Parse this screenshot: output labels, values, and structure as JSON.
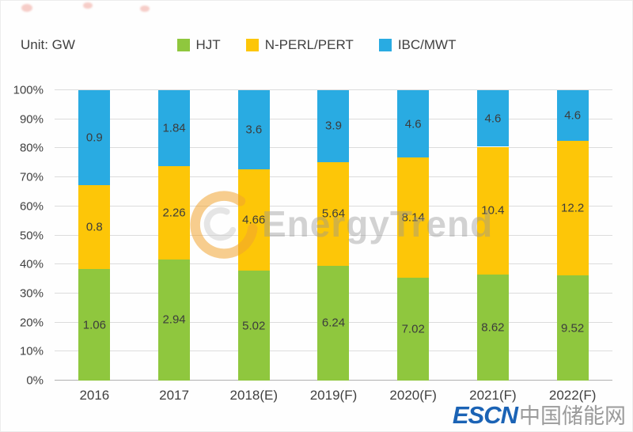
{
  "header": {
    "unit_label": "Unit: GW"
  },
  "watermark": {
    "text": "EnergyTrend",
    "logo_color": "#f0a431"
  },
  "footer": {
    "escn": "ESCN",
    "site_name": "中国储能网",
    "escn_color": "#1b63b5"
  },
  "chart_data": {
    "type": "bar",
    "variant": "100-percent-stacked-column",
    "title": "",
    "unit": "GW",
    "categories": [
      "2016",
      "2017",
      "2018(E)",
      "2019(F)",
      "2020(F)",
      "2021(F)",
      "2022(F)"
    ],
    "series": [
      {
        "name": "HJT",
        "color": "#8fc73e",
        "values": [
          1.06,
          2.94,
          5.02,
          6.24,
          7.02,
          8.62,
          9.52
        ]
      },
      {
        "name": "N-PERL/PERT",
        "color": "#fdc608",
        "values": [
          0.8,
          2.26,
          4.66,
          5.64,
          8.14,
          10.4,
          12.2
        ]
      },
      {
        "name": "IBC/MWT",
        "color": "#29abe2",
        "values": [
          0.9,
          1.84,
          3.6,
          3.9,
          4.6,
          4.6,
          4.6
        ]
      }
    ],
    "value_labels_shown": true,
    "values_are_absolute_gw": true,
    "bars_normalized_to_percent_share": true,
    "yticks": [
      "0%",
      "10%",
      "20%",
      "30%",
      "40%",
      "50%",
      "60%",
      "70%",
      "80%",
      "90%",
      "100%"
    ],
    "ylim": [
      0,
      100
    ],
    "xlabel": "",
    "ylabel": "",
    "grid": true,
    "legend_position": "top"
  }
}
